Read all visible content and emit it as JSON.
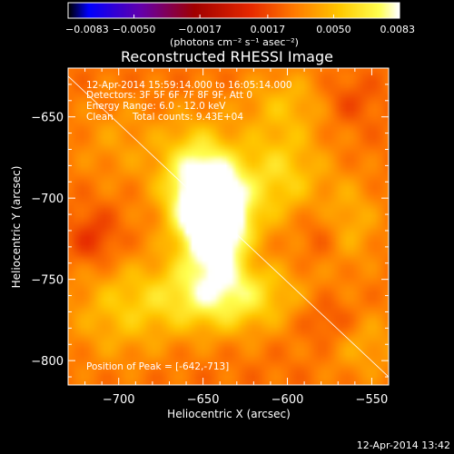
{
  "chart_data": {
    "type": "heatmap",
    "title": "Reconstructed RHESSI Image",
    "xlabel": "Heliocentric X (arcsec)",
    "ylabel": "Heliocentric Y (arcsec)",
    "xlim": [
      -730,
      -540
    ],
    "ylim": [
      -815,
      -620
    ],
    "x_ticks": [
      -700,
      -650,
      -600,
      -550
    ],
    "x_tick_labels": [
      "−700",
      "−650",
      "−600",
      "−550"
    ],
    "y_ticks": [
      -650,
      -700,
      -750,
      -800
    ],
    "y_tick_labels": [
      "−650",
      "−700",
      "−750",
      "−800"
    ],
    "colorbar": {
      "range": [
        -0.0083,
        0.0083
      ],
      "ticks": [
        -0.0083,
        -0.005,
        -0.0017,
        0.0017,
        0.005,
        0.0083
      ],
      "tick_labels": [
        "−0.0083",
        "−0.0050",
        "−0.0017",
        "0.0017",
        "0.0050",
        "0.0083"
      ],
      "colors": [
        "#0000ff",
        "#6a00a8",
        "#c4002a",
        "#ff7a00",
        "#ffd000",
        "#ffffff"
      ]
    },
    "peak": [
      -642,
      -713
    ],
    "blobs": [
      {
        "x": -642,
        "y": -713,
        "amp": 0.0083,
        "sx": 14,
        "sy": 22
      },
      {
        "x": -655,
        "y": -690,
        "amp": 0.0045,
        "sx": 15,
        "sy": 24
      },
      {
        "x": -640,
        "y": -760,
        "amp": 0.0045,
        "sx": 30,
        "sy": 16
      },
      {
        "x": -605,
        "y": -685,
        "amp": 0.003,
        "sx": 18,
        "sy": 22
      },
      {
        "x": -700,
        "y": -770,
        "amp": 0.002,
        "sx": 22,
        "sy": 22
      },
      {
        "x": -565,
        "y": -715,
        "amp": 0.002,
        "sx": 14,
        "sy": 20
      },
      {
        "x": -600,
        "y": -640,
        "amp": 0.0018,
        "sx": 20,
        "sy": 14
      },
      {
        "x": -555,
        "y": -790,
        "amp": 0.0016,
        "sx": 16,
        "sy": 16
      },
      {
        "x": -700,
        "y": -665,
        "amp": 0.0012,
        "sx": 20,
        "sy": 20
      },
      {
        "x": -715,
        "y": -725,
        "amp": -0.0017,
        "sx": 10,
        "sy": 12
      },
      {
        "x": -580,
        "y": -720,
        "amp": -0.0014,
        "sx": 10,
        "sy": 14
      },
      {
        "x": -575,
        "y": -775,
        "amp": -0.0014,
        "sx": 12,
        "sy": 10
      },
      {
        "x": -565,
        "y": -640,
        "amp": -0.0012,
        "sx": 12,
        "sy": 10
      },
      {
        "x": -620,
        "y": -735,
        "amp": -0.0008,
        "sx": 8,
        "sy": 8
      }
    ],
    "background": 0.0028,
    "limb_line": {
      "from": [
        -730,
        -625
      ],
      "to": [
        -540,
        -810
      ]
    }
  },
  "labels": {
    "cb_units": "(photons cm⁻² s⁻¹ asec⁻²)",
    "title": "Reconstructed RHESSI Image",
    "time_range": "12-Apr-2014 15:59:14.000 to 16:05:14.000",
    "detectors": "Detectors: 3F 5F 6F 7F 8F 9F, Att 0",
    "energy": "Energy Range: 6.0 - 12.0 keV",
    "method": "Clean",
    "counts": "Total counts: 9.43E+04",
    "peak": "Position of Peak = [-642,-713]",
    "xlabel": "Heliocentric X (arcsec)",
    "ylabel": "Heliocentric Y (arcsec)",
    "timestamp": "12-Apr-2014 13:42"
  }
}
